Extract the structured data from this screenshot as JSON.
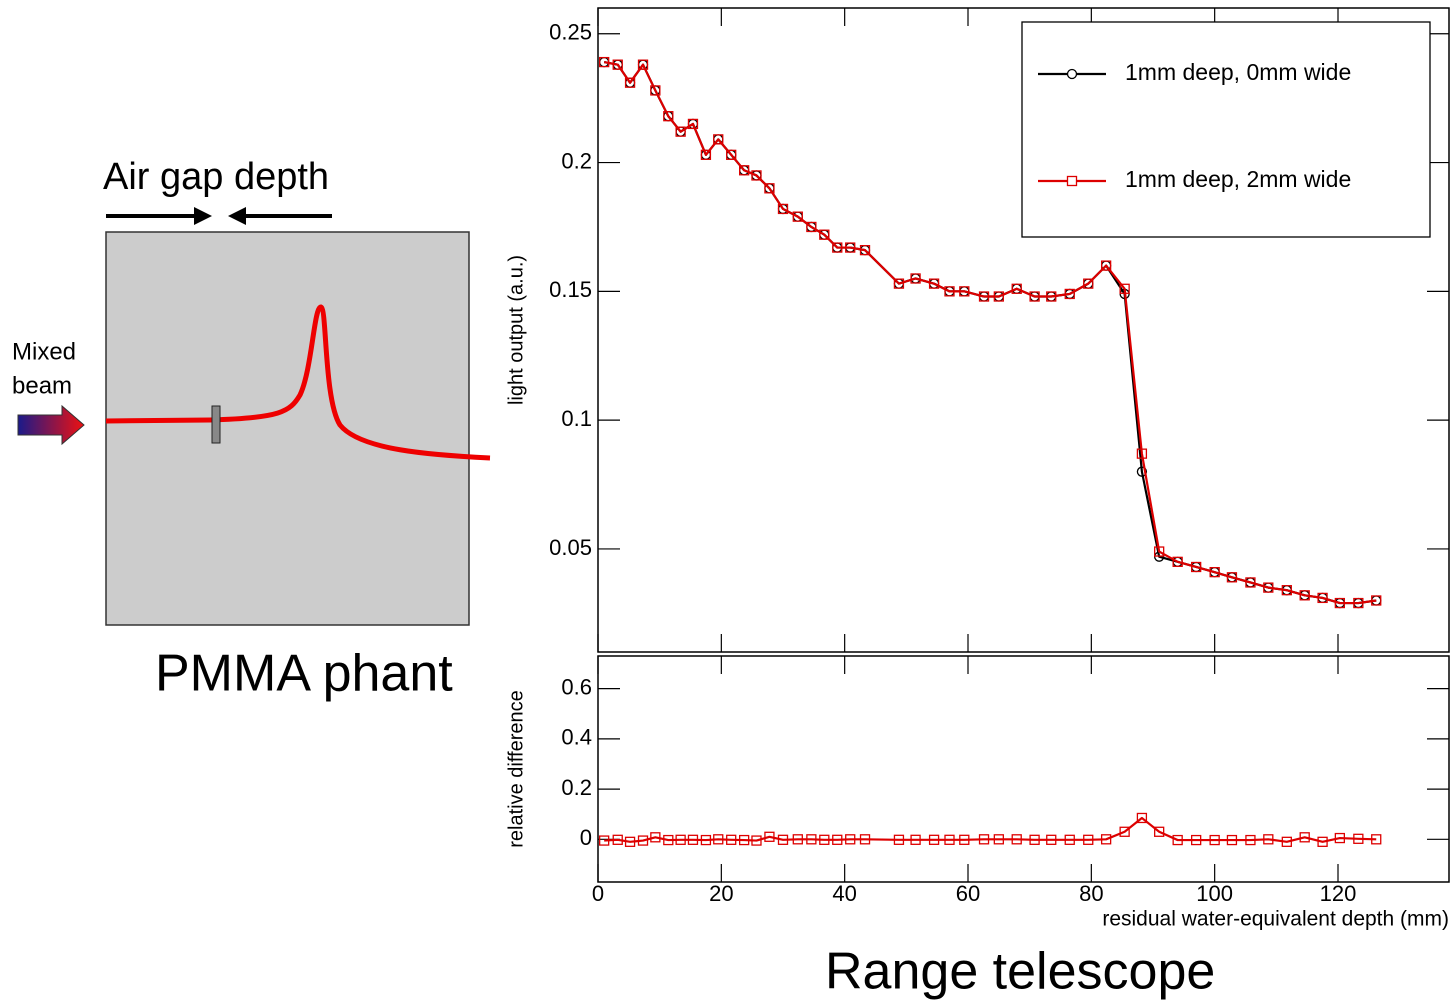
{
  "diagram": {
    "gap_label": "Air gap depth",
    "beam_label_1": "Mixed",
    "beam_label_2": "beam",
    "phantom_label": "PMMA phant",
    "detector_label": "Range telescope"
  },
  "chart_data": [
    {
      "type": "line",
      "ylabel": "light output (a.u.)",
      "legend": "top-right",
      "xlim": [
        0,
        138
      ],
      "ylim": [
        0.01,
        0.26
      ],
      "xticks": [
        0,
        20,
        40,
        60,
        80,
        100,
        120
      ],
      "yticks": [
        0.05,
        0.1,
        0.15,
        0.2,
        0.25
      ],
      "x": [
        1,
        3.2,
        5.2,
        7.3,
        9.3,
        11.4,
        13.4,
        15.4,
        17.5,
        19.5,
        21.6,
        23.7,
        25.7,
        27.8,
        30,
        32.4,
        34.6,
        36.7,
        38.8,
        40.9,
        43.3,
        48.8,
        51.5,
        54.5,
        57,
        59.4,
        62.6,
        65,
        67.9,
        70.8,
        73.5,
        76.5,
        79.5,
        82.4,
        85.4,
        88.2,
        91,
        94,
        97,
        100,
        102.8,
        105.8,
        108.7,
        111.7,
        114.6,
        117.5,
        120.3,
        123.3,
        126.2
      ],
      "series": [
        {
          "name": "1mm deep, 0mm wide",
          "color": "#000000",
          "marker": "circle",
          "values": [
            0.239,
            0.238,
            0.231,
            0.238,
            0.228,
            0.218,
            0.212,
            0.215,
            0.203,
            0.209,
            0.203,
            0.197,
            0.195,
            0.19,
            0.182,
            0.179,
            0.175,
            0.172,
            0.167,
            0.167,
            0.166,
            0.153,
            0.155,
            0.153,
            0.15,
            0.15,
            0.148,
            0.148,
            0.151,
            0.148,
            0.148,
            0.149,
            0.153,
            0.16,
            0.149,
            0.08,
            0.047,
            0.045,
            0.043,
            0.041,
            0.039,
            0.037,
            0.035,
            0.034,
            0.032,
            0.031,
            0.029,
            0.029,
            0.03
          ]
        },
        {
          "name": "1mm deep, 2mm wide",
          "color": "#dd0000",
          "marker": "square",
          "values": [
            0.239,
            0.238,
            0.231,
            0.238,
            0.228,
            0.218,
            0.212,
            0.215,
            0.203,
            0.209,
            0.203,
            0.197,
            0.195,
            0.19,
            0.182,
            0.179,
            0.175,
            0.172,
            0.167,
            0.167,
            0.166,
            0.153,
            0.155,
            0.153,
            0.15,
            0.15,
            0.148,
            0.148,
            0.151,
            0.148,
            0.148,
            0.149,
            0.153,
            0.16,
            0.151,
            0.087,
            0.049,
            0.045,
            0.043,
            0.041,
            0.039,
            0.037,
            0.035,
            0.034,
            0.032,
            0.031,
            0.029,
            0.029,
            0.03
          ]
        }
      ]
    },
    {
      "type": "line",
      "ylabel": "relative difference",
      "xlabel": "residual water-equivalent depth (mm)",
      "xlim": [
        0,
        138
      ],
      "ylim": [
        -0.17,
        0.73
      ],
      "xticks": [
        0,
        20,
        40,
        60,
        80,
        100,
        120
      ],
      "yticks": [
        0,
        0.2,
        0.4,
        0.6
      ],
      "x": [
        1,
        3.2,
        5.2,
        7.3,
        9.3,
        11.4,
        13.4,
        15.4,
        17.5,
        19.5,
        21.6,
        23.7,
        25.7,
        27.8,
        30,
        32.4,
        34.6,
        36.7,
        38.8,
        40.9,
        43.3,
        48.8,
        51.5,
        54.5,
        57,
        59.4,
        62.6,
        65,
        67.9,
        70.8,
        73.5,
        76.5,
        79.5,
        82.4,
        85.4,
        88.2,
        91,
        94,
        97,
        100,
        102.8,
        105.8,
        108.7,
        111.7,
        114.6,
        117.5,
        120.3,
        123.3,
        126.2
      ],
      "series": [
        {
          "color": "#dd0000",
          "marker": "square",
          "values": [
            -0.005,
            -0.002,
            -0.01,
            -0.005,
            0.008,
            -0.003,
            -0.002,
            -0.002,
            -0.003,
            0,
            -0.002,
            -0.003,
            -0.005,
            0.01,
            -0.002,
            0,
            0,
            -0.002,
            -0.002,
            0,
            0,
            -0.002,
            -0.002,
            -0.002,
            -0.002,
            -0.002,
            0,
            0,
            0,
            -0.002,
            -0.002,
            -0.002,
            -0.002,
            0,
            0.03,
            0.085,
            0.03,
            -0.003,
            -0.003,
            -0.003,
            -0.003,
            -0.003,
            0,
            -0.01,
            0.008,
            -0.01,
            0.005,
            0.002,
            0
          ]
        }
      ]
    }
  ]
}
